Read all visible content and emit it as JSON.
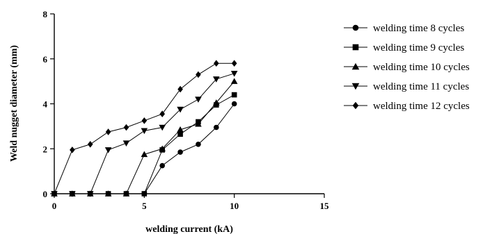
{
  "chart_data": {
    "type": "line",
    "xlabel": "welding current (kA)",
    "ylabel": "Weld nugget diameter (mm)",
    "xlim": [
      0,
      15
    ],
    "ylim": [
      0,
      8
    ],
    "x_ticks": [
      "0",
      "5",
      "10",
      "15"
    ],
    "y_ticks": [
      "0",
      "2",
      "4",
      "6",
      "8"
    ],
    "grid": false,
    "legend_position": "right",
    "series": [
      {
        "name": "welding time 8 cycles",
        "marker": "circle",
        "x": [
          0,
          1,
          2,
          3,
          4,
          5,
          6,
          7,
          8,
          9,
          10
        ],
        "y": [
          0,
          0,
          0,
          0,
          0,
          0,
          1.25,
          1.85,
          2.2,
          2.95,
          4.0
        ]
      },
      {
        "name": "welding time 9 cycles",
        "marker": "square",
        "x": [
          0,
          1,
          2,
          3,
          4,
          5,
          6,
          7,
          8,
          9,
          10
        ],
        "y": [
          0,
          0,
          0,
          0,
          0,
          0,
          1.95,
          2.65,
          3.2,
          3.95,
          4.4
        ]
      },
      {
        "name": "welding time 10 cycles",
        "marker": "triangle-up",
        "x": [
          0,
          1,
          2,
          3,
          4,
          5,
          6,
          7,
          8,
          9,
          10
        ],
        "y": [
          0,
          0,
          0,
          0,
          0,
          1.75,
          2.0,
          2.85,
          3.1,
          4.05,
          5.0
        ]
      },
      {
        "name": "welding time 11 cycles",
        "marker": "triangle-down",
        "x": [
          0,
          1,
          2,
          3,
          4,
          5,
          6,
          7,
          8,
          9,
          10
        ],
        "y": [
          0,
          0,
          0,
          1.95,
          2.25,
          2.8,
          2.95,
          3.75,
          4.2,
          5.1,
          5.35
        ]
      },
      {
        "name": "welding time 12 cycles",
        "marker": "diamond",
        "x": [
          0,
          1,
          2,
          3,
          4,
          5,
          6,
          7,
          8,
          9,
          10
        ],
        "y": [
          0,
          1.95,
          2.2,
          2.75,
          2.95,
          3.25,
          3.55,
          4.65,
          5.3,
          5.8,
          5.8
        ]
      }
    ]
  }
}
